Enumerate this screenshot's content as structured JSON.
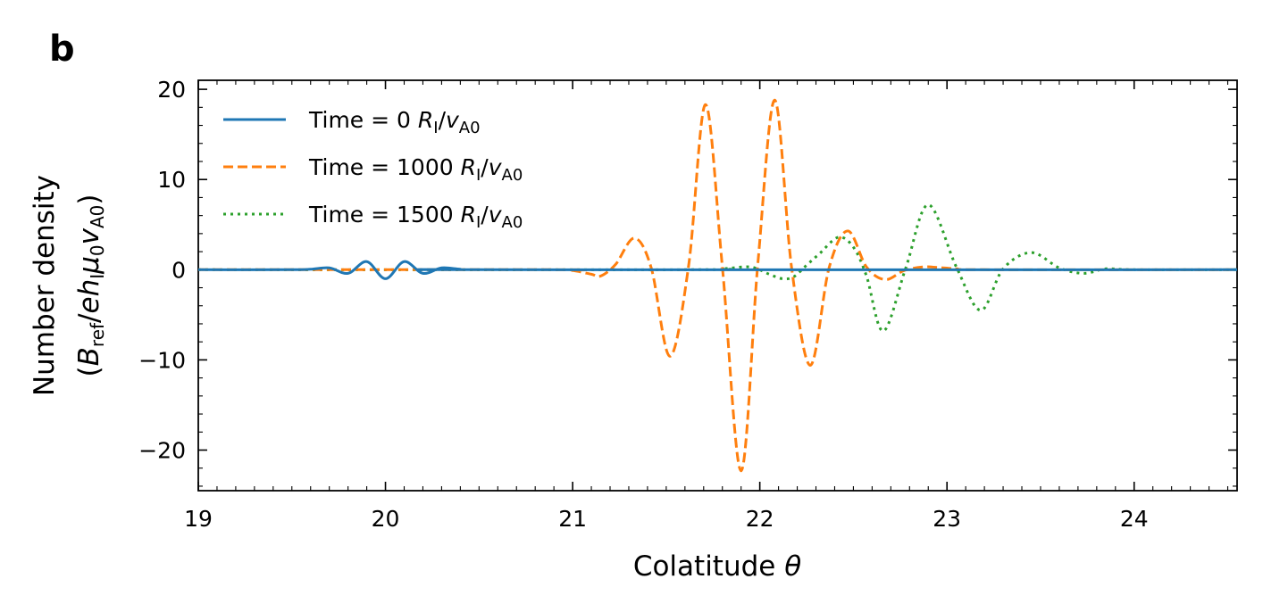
{
  "panel_label": "b",
  "chart_data": {
    "type": "line",
    "xlabel": "Colatitude θ",
    "ylabel_line1": "Number density",
    "ylabel_line2": "(B_ref/ehIμ0vA0)",
    "xlim": [
      19,
      24.55
    ],
    "ylim": [
      -24.5,
      21
    ],
    "xticks": [
      19,
      20,
      21,
      22,
      23,
      24
    ],
    "xtick_labels": [
      "19",
      "20",
      "21",
      "22",
      "23",
      "24"
    ],
    "yticks": [
      -20,
      -10,
      0,
      10,
      20
    ],
    "ytick_labels": [
      "−20",
      "−10",
      "0",
      "10",
      "20"
    ],
    "legend_position": "top-left",
    "series": [
      {
        "name": "Time = 0 RI/vA0",
        "legend_prefix": "Time = 0",
        "color": "#1f77b4",
        "style": "solid",
        "x": [
          19.0,
          19.5,
          19.6,
          19.7,
          19.8,
          19.9,
          20.0,
          20.1,
          20.2,
          20.3,
          20.4,
          20.5,
          24.55
        ],
        "y": [
          0,
          0,
          0.05,
          0.2,
          -0.4,
          0.9,
          -1.0,
          0.9,
          -0.4,
          0.2,
          0.05,
          0,
          0
        ]
      },
      {
        "name": "Time = 1000 RI/vA0",
        "legend_prefix": "Time = 1000",
        "color": "#ff7f0e",
        "style": "dashed",
        "x": [
          19.0,
          20.9,
          21.0,
          21.1,
          21.15,
          21.23,
          21.33,
          21.42,
          21.52,
          21.62,
          21.71,
          21.8,
          21.9,
          21.99,
          22.08,
          22.17,
          22.27,
          22.37,
          22.47,
          22.57,
          22.67,
          22.77,
          22.87,
          22.95,
          23.05,
          23.2,
          24.55
        ],
        "y": [
          0,
          0,
          -0.1,
          -0.5,
          -0.7,
          0.6,
          3.5,
          0.2,
          -9.6,
          0.5,
          18.3,
          0.3,
          -22.3,
          0.8,
          18.8,
          0.2,
          -10.6,
          0.2,
          4.3,
          0.3,
          -1.1,
          -0.1,
          0.3,
          0.25,
          0.1,
          0,
          0
        ]
      },
      {
        "name": "Time = 1500 RI/vA0",
        "legend_prefix": "Time = 1500",
        "color": "#2ca02c",
        "style": "dotted",
        "x": [
          19.0,
          21.6,
          21.8,
          21.95,
          22.05,
          22.12,
          22.18,
          22.25,
          22.32,
          22.42,
          22.5,
          22.57,
          22.66,
          22.78,
          22.9,
          23.05,
          23.18,
          23.3,
          23.45,
          23.6,
          23.73,
          23.85,
          24.0,
          24.55
        ],
        "y": [
          0,
          0,
          0.1,
          0.3,
          -0.5,
          -1.0,
          -0.8,
          0.5,
          1.8,
          3.6,
          2.5,
          -0.7,
          -6.8,
          0.2,
          7.2,
          0.3,
          -4.5,
          0.1,
          1.9,
          0.2,
          -0.4,
          0.1,
          0,
          0
        ]
      }
    ]
  }
}
